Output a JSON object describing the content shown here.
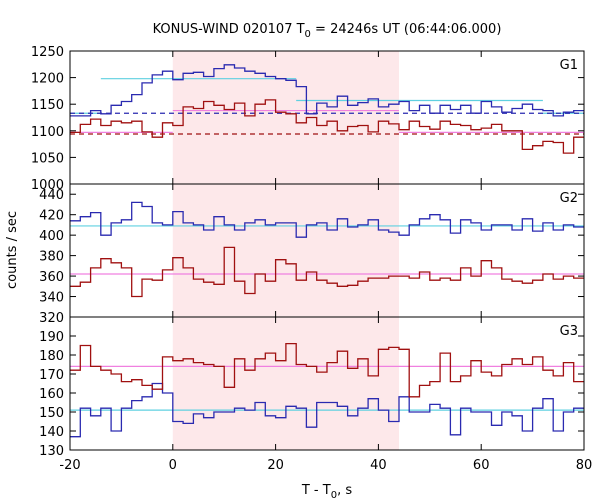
{
  "chart_data": {
    "type": "line",
    "title": {
      "prefix": "KONUS-WIND 020107 T",
      "sub": "0",
      "suffix": " = 24246s UT (06:44:06.000)"
    },
    "xlabel": {
      "prefix": "T - T",
      "sub": "0",
      "suffix": ", s"
    },
    "ylabel": "counts / sec",
    "xlim": [
      -20,
      80
    ],
    "x_ticks": [
      "-20",
      "0",
      "20",
      "40",
      "60",
      "80"
    ],
    "highlight": {
      "x_start": 0,
      "x_end": 44,
      "color": "#fde8ea"
    },
    "colors": {
      "blue": "#2a2ab0",
      "red": "#a01010",
      "cyan": "#5fd0e0",
      "pink": "#f080e0"
    },
    "panels": [
      {
        "label": "G1",
        "ylim": [
          1000,
          1250
        ],
        "y_ticks": [
          "1000",
          "1050",
          "1100",
          "1150",
          "1200",
          "1250"
        ],
        "series": [
          {
            "color": "blue",
            "x": [
              -20,
              -18,
              -16,
              -14,
              -12,
              -10,
              -8,
              -6,
              -4,
              -2,
              0,
              2,
              4,
              6,
              8,
              10,
              12,
              14,
              16,
              18,
              20,
              22,
              24,
              26,
              28,
              30,
              32,
              34,
              36,
              38,
              40,
              42,
              44,
              46,
              48,
              50,
              52,
              54,
              56,
              58,
              60,
              62,
              64,
              66,
              68,
              70,
              72,
              74,
              76,
              78
            ],
            "y": [
              1128,
              1128,
              1138,
              1132,
              1148,
              1155,
              1168,
              1190,
              1205,
              1212,
              1196,
              1208,
              1210,
              1202,
              1217,
              1224,
              1218,
              1212,
              1208,
              1202,
              1198,
              1195,
              1183,
              1132,
              1152,
              1145,
              1165,
              1148,
              1153,
              1160,
              1145,
              1150,
              1155,
              1138,
              1148,
              1133,
              1148,
              1140,
              1148,
              1133,
              1155,
              1145,
              1135,
              1142,
              1150,
              1140,
              1138,
              1128,
              1135,
              1138
            ]
          },
          {
            "color": "red",
            "x": [
              -20,
              -18,
              -16,
              -14,
              -12,
              -10,
              -8,
              -6,
              -4,
              -2,
              0,
              2,
              4,
              6,
              8,
              10,
              12,
              14,
              16,
              18,
              20,
              22,
              24,
              26,
              28,
              30,
              32,
              34,
              36,
              38,
              40,
              42,
              44,
              46,
              48,
              50,
              52,
              54,
              56,
              58,
              60,
              62,
              64,
              66,
              68,
              70,
              72,
              74,
              76,
              78
            ],
            "y": [
              1097,
              1112,
              1122,
              1110,
              1118,
              1115,
              1118,
              1098,
              1088,
              1115,
              1110,
              1145,
              1142,
              1155,
              1148,
              1140,
              1152,
              1128,
              1150,
              1158,
              1135,
              1132,
              1115,
              1125,
              1110,
              1118,
              1100,
              1108,
              1110,
              1098,
              1118,
              1113,
              1102,
              1118,
              1108,
              1103,
              1118,
              1112,
              1110,
              1102,
              1105,
              1112,
              1100,
              1100,
              1065,
              1072,
              1080,
              1078,
              1058,
              1088
            ]
          }
        ],
        "bands": [
          {
            "color": "cyan",
            "style": "solid",
            "segments": [
              [
                -20,
                -14,
                1133
              ],
              [
                -14,
                24,
                1198
              ],
              [
                24,
                72,
                1157
              ],
              [
                72,
                80,
                1133
              ]
            ]
          },
          {
            "color": "pink",
            "style": "solid",
            "segments": [
              [
                -20,
                0,
                1097
              ],
              [
                0,
                44,
                1138
              ],
              [
                44,
                80,
                1097
              ]
            ]
          },
          {
            "color": "blue",
            "style": "dashed",
            "segments": [
              [
                -20,
                80,
                1133
              ]
            ]
          },
          {
            "color": "red",
            "style": "dashed",
            "segments": [
              [
                -20,
                80,
                1094
              ]
            ]
          }
        ]
      },
      {
        "label": "G2",
        "ylim": [
          320,
          450
        ],
        "y_ticks": [
          "320",
          "340",
          "360",
          "380",
          "400",
          "420",
          "440"
        ],
        "series": [
          {
            "color": "blue",
            "x": [
              -20,
              -18,
              -16,
              -14,
              -12,
              -10,
              -8,
              -6,
              -4,
              -2,
              0,
              2,
              4,
              6,
              8,
              10,
              12,
              14,
              16,
              18,
              20,
              22,
              24,
              26,
              28,
              30,
              32,
              34,
              36,
              38,
              40,
              42,
              44,
              46,
              48,
              50,
              52,
              54,
              56,
              58,
              60,
              62,
              64,
              66,
              68,
              70,
              72,
              74,
              76,
              78
            ],
            "y": [
              414,
              418,
              422,
              400,
              412,
              415,
              432,
              428,
              412,
              410,
              423,
              412,
              410,
              405,
              418,
              410,
              405,
              412,
              415,
              410,
              412,
              412,
              398,
              410,
              412,
              405,
              416,
              408,
              410,
              415,
              405,
              403,
              400,
              410,
              416,
              420,
              415,
              402,
              415,
              412,
              405,
              410,
              410,
              405,
              416,
              404,
              412,
              405,
              410,
              408
            ]
          },
          {
            "color": "red",
            "x": [
              -20,
              -18,
              -16,
              -14,
              -12,
              -10,
              -8,
              -6,
              -4,
              -2,
              0,
              2,
              4,
              6,
              8,
              10,
              12,
              14,
              16,
              18,
              20,
              22,
              24,
              26,
              28,
              30,
              32,
              34,
              36,
              38,
              40,
              42,
              44,
              46,
              48,
              50,
              52,
              54,
              56,
              58,
              60,
              62,
              64,
              66,
              68,
              70,
              72,
              74,
              76,
              78
            ],
            "y": [
              350,
              354,
              368,
              377,
              373,
              368,
              340,
              357,
              356,
              366,
              378,
              368,
              357,
              354,
              352,
              388,
              355,
              343,
              362,
              355,
              376,
              372,
              356,
              364,
              356,
              353,
              350,
              351,
              355,
              358,
              358,
              360,
              360,
              358,
              364,
              356,
              358,
              356,
              368,
              360,
              375,
              368,
              357,
              355,
              353,
              356,
              362,
              357,
              360,
              358
            ]
          }
        ],
        "bands": [
          {
            "color": "cyan",
            "style": "solid",
            "segments": [
              [
                -20,
                80,
                409
              ]
            ]
          },
          {
            "color": "pink",
            "style": "solid",
            "segments": [
              [
                -20,
                80,
                362
              ]
            ]
          }
        ]
      },
      {
        "label": "G3",
        "ylim": [
          130,
          200
        ],
        "y_ticks": [
          "130",
          "140",
          "150",
          "160",
          "170",
          "180",
          "190"
        ],
        "series": [
          {
            "color": "blue",
            "x": [
              -20,
              -18,
              -16,
              -14,
              -12,
              -10,
              -8,
              -6,
              -4,
              -2,
              0,
              2,
              4,
              6,
              8,
              10,
              12,
              14,
              16,
              18,
              20,
              22,
              24,
              26,
              28,
              30,
              32,
              34,
              36,
              38,
              40,
              42,
              44,
              46,
              48,
              50,
              52,
              54,
              56,
              58,
              60,
              62,
              64,
              66,
              68,
              70,
              72,
              74,
              76,
              78
            ],
            "y": [
              137,
              152,
              148,
              152,
              140,
              152,
              156,
              158,
              165,
              160,
              145,
              144,
              149,
              147,
              150,
              150,
              152,
              151,
              155,
              148,
              147,
              153,
              152,
              142,
              155,
              155,
              153,
              148,
              152,
              157,
              151,
              145,
              158,
              150,
              150,
              154,
              152,
              138,
              152,
              150,
              150,
              143,
              150,
              148,
              140,
              152,
              157,
              140,
              150,
              152
            ]
          },
          {
            "color": "red",
            "x": [
              -20,
              -18,
              -16,
              -14,
              -12,
              -10,
              -8,
              -6,
              -4,
              -2,
              0,
              2,
              4,
              6,
              8,
              10,
              12,
              14,
              16,
              18,
              20,
              22,
              24,
              26,
              28,
              30,
              32,
              34,
              36,
              38,
              40,
              42,
              44,
              46,
              48,
              50,
              52,
              54,
              56,
              58,
              60,
              62,
              64,
              66,
              68,
              70,
              72,
              74,
              76,
              78
            ],
            "y": [
              172,
              185,
              174,
              172,
              170,
              166,
              167,
              164,
              162,
              179,
              177,
              178,
              176,
              175,
              174,
              163,
              178,
              172,
              178,
              181,
              177,
              186,
              175,
              174,
              171,
              176,
              182,
              173,
              178,
              169,
              183,
              184,
              183,
              158,
              164,
              166,
              181,
              166,
              169,
              177,
              171,
              169,
              175,
              178,
              175,
              179,
              172,
              169,
              176,
              166
            ]
          }
        ],
        "bands": [
          {
            "color": "cyan",
            "style": "solid",
            "segments": [
              [
                -20,
                80,
                151
              ]
            ]
          },
          {
            "color": "pink",
            "style": "solid",
            "segments": [
              [
                -20,
                80,
                174
              ]
            ]
          }
        ]
      }
    ]
  }
}
